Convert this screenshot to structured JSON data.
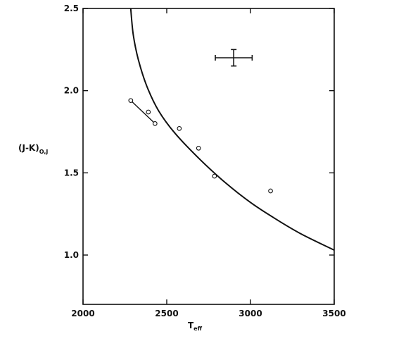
{
  "chart_data": {
    "type": "scatter",
    "title": "",
    "xlabel": "T",
    "xlabel_sub": "eff",
    "ylabel": "(J-K)",
    "ylabel_sub": "O,J",
    "xlim": [
      2000,
      3500
    ],
    "ylim": [
      0.7,
      2.5
    ],
    "x_ticks": [
      2000,
      2500,
      3000,
      3500
    ],
    "y_ticks": [
      "1.0",
      "1.5",
      "2.0",
      "2.5"
    ],
    "grid": false,
    "legend": "none",
    "series": [
      {
        "marker": "open-circle",
        "x": [
          2285,
          2390,
          2430,
          2575,
          2690,
          2785,
          3120
        ],
        "y": [
          1.94,
          1.87,
          1.8,
          1.77,
          1.65,
          1.48,
          1.39
        ]
      }
    ],
    "connector_segment": {
      "x": [
        2285,
        2430
      ],
      "y": [
        1.94,
        1.8
      ]
    },
    "model_curve": {
      "x": [
        2285,
        2300,
        2330,
        2380,
        2450,
        2550,
        2700,
        2850,
        3000,
        3150,
        3300,
        3500
      ],
      "y": [
        2.5,
        2.34,
        2.19,
        2.03,
        1.88,
        1.74,
        1.58,
        1.44,
        1.32,
        1.22,
        1.13,
        1.03
      ]
    },
    "error_bar": {
      "x": 2900,
      "y": 2.2,
      "x_err": 110,
      "y_err": 0.05
    },
    "colors": {
      "ink": "#111111",
      "background": "#ffffff"
    }
  }
}
